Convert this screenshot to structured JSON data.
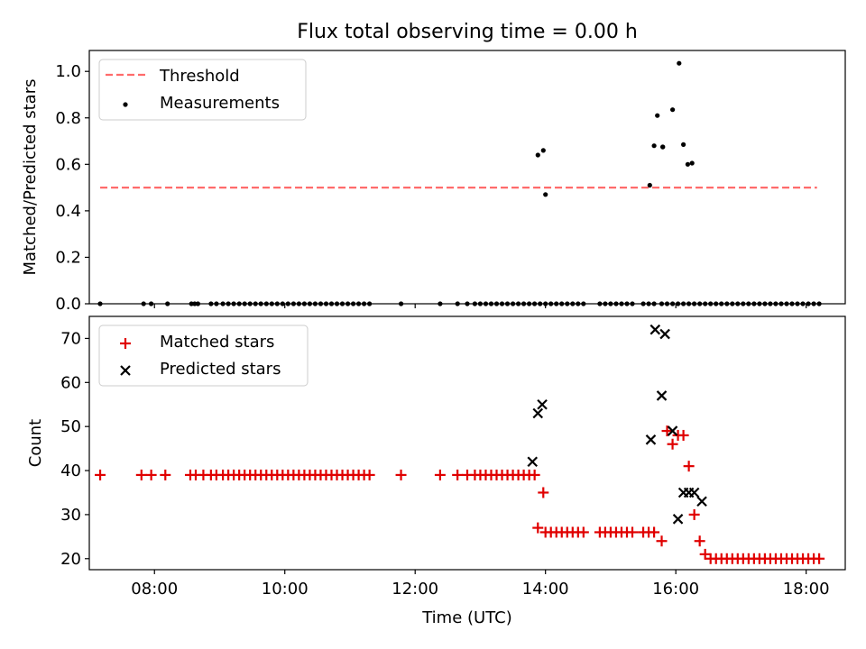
{
  "title": "Flux total observing time = 0.00 h",
  "colors": {
    "threshold": "#ff6b6b",
    "matched": "#e00000",
    "predicted": "#000000",
    "measurement": "#000000"
  },
  "chart_data": [
    {
      "type": "scatter",
      "ylabel": "Matched/Predicted stars",
      "xlabel": "",
      "xlim": [
        "07:00",
        "18:36"
      ],
      "ylim": [
        0,
        1.09
      ],
      "yticks": [
        "0.0",
        "0.2",
        "0.4",
        "0.6",
        "0.8",
        "1.0"
      ],
      "legend_position": "top-left",
      "threshold": {
        "name": "Threshold",
        "value": 0.5,
        "x_range": [
          "07:10",
          "18:10"
        ]
      },
      "series": [
        {
          "name": "Measurements",
          "x": [
            "07:10",
            "07:50",
            "07:57",
            "08:12",
            "08:34",
            "08:37",
            "08:40",
            "08:52",
            "08:57",
            "09:03",
            "09:08",
            "09:13",
            "09:18",
            "09:23",
            "09:28",
            "09:33",
            "09:38",
            "09:43",
            "09:48",
            "09:53",
            "09:58",
            "10:03",
            "10:08",
            "10:13",
            "10:18",
            "10:23",
            "10:28",
            "10:33",
            "10:38",
            "10:43",
            "10:48",
            "10:53",
            "10:58",
            "11:03",
            "11:08",
            "11:13",
            "11:18",
            "11:47",
            "12:23",
            "12:39",
            "12:48",
            "12:55",
            "13:00",
            "13:05",
            "13:10",
            "13:15",
            "13:20",
            "13:25",
            "13:30",
            "13:35",
            "13:40",
            "13:45",
            "13:50",
            "13:55",
            "14:00",
            "14:05",
            "14:10",
            "14:15",
            "14:20",
            "14:25",
            "14:30",
            "14:35",
            "14:50",
            "14:55",
            "15:00",
            "15:05",
            "15:10",
            "15:15",
            "15:20",
            "15:30",
            "15:35",
            "15:40",
            "15:47",
            "15:52",
            "15:57",
            "16:02",
            "16:07",
            "16:12",
            "16:17",
            "16:22",
            "16:27",
            "16:32",
            "16:37",
            "16:42",
            "16:47",
            "16:52",
            "16:57",
            "17:02",
            "17:07",
            "17:12",
            "17:17",
            "17:22",
            "17:27",
            "17:32",
            "17:37",
            "17:42",
            "17:47",
            "17:52",
            "17:57",
            "18:02",
            "18:07",
            "18:12",
            "13:53",
            "13:58",
            "14:00",
            "15:36",
            "15:40",
            "15:43",
            "15:48",
            "15:48",
            "15:57",
            "16:03",
            "16:07",
            "16:11",
            "16:15"
          ],
          "y": [
            0,
            0,
            0,
            0,
            0,
            0,
            0,
            0,
            0,
            0,
            0,
            0,
            0,
            0,
            0,
            0,
            0,
            0,
            0,
            0,
            0,
            0,
            0,
            0,
            0,
            0,
            0,
            0,
            0,
            0,
            0,
            0,
            0,
            0,
            0,
            0,
            0,
            0,
            0,
            0,
            0,
            0,
            0,
            0,
            0,
            0,
            0,
            0,
            0,
            0,
            0,
            0,
            0,
            0,
            0,
            0,
            0,
            0,
            0,
            0,
            0,
            0,
            0,
            0,
            0,
            0,
            0,
            0,
            0,
            0,
            0,
            0,
            0,
            0,
            0,
            0,
            0,
            0,
            0,
            0,
            0,
            0,
            0,
            0,
            0,
            0,
            0,
            0,
            0,
            0,
            0,
            0,
            0,
            0,
            0,
            0,
            0,
            0,
            0,
            0,
            0,
            0,
            0.64,
            0.66,
            0.47,
            0.51,
            0.68,
            0.81,
            0.675,
            0.675,
            0.835,
            1.035,
            0.685,
            0.6,
            0.605
          ]
        }
      ]
    },
    {
      "type": "scatter",
      "ylabel": "Count",
      "xlabel": "Time (UTC)",
      "xlim": [
        "07:00",
        "18:36"
      ],
      "ylim": [
        17.5,
        75
      ],
      "xticks": [
        "08:00",
        "10:00",
        "12:00",
        "14:00",
        "16:00",
        "18:00"
      ],
      "yticks": [
        "20",
        "30",
        "40",
        "50",
        "60",
        "70"
      ],
      "legend_position": "top-left",
      "series": [
        {
          "name": "Matched stars",
          "x": [
            "07:10",
            "07:48",
            "07:57",
            "08:10",
            "08:33",
            "08:38",
            "08:45",
            "08:52",
            "08:57",
            "09:03",
            "09:08",
            "09:13",
            "09:18",
            "09:23",
            "09:28",
            "09:33",
            "09:38",
            "09:43",
            "09:48",
            "09:53",
            "09:58",
            "10:03",
            "10:08",
            "10:13",
            "10:18",
            "10:23",
            "10:28",
            "10:33",
            "10:38",
            "10:43",
            "10:48",
            "10:53",
            "10:58",
            "11:03",
            "11:08",
            "11:13",
            "11:18",
            "11:47",
            "12:23",
            "12:39",
            "12:48",
            "12:55",
            "13:00",
            "13:05",
            "13:10",
            "13:15",
            "13:20",
            "13:25",
            "13:30",
            "13:35",
            "13:40",
            "13:45",
            "13:50",
            "13:53",
            "13:58",
            "14:00",
            "14:05",
            "14:10",
            "14:15",
            "14:20",
            "14:25",
            "14:30",
            "14:35",
            "14:50",
            "14:55",
            "15:00",
            "15:05",
            "15:10",
            "15:15",
            "15:20",
            "15:30",
            "15:35",
            "15:40",
            "15:47",
            "15:52",
            "15:57",
            "16:02",
            "16:07",
            "16:12",
            "16:17",
            "16:22",
            "16:27",
            "16:32",
            "16:37",
            "16:42",
            "16:47",
            "16:52",
            "16:57",
            "17:02",
            "17:07",
            "17:12",
            "17:17",
            "17:22",
            "17:27",
            "17:32",
            "17:37",
            "17:42",
            "17:47",
            "17:52",
            "17:57",
            "18:02",
            "18:07",
            "18:12"
          ],
          "y": [
            39,
            39,
            39,
            39,
            39,
            39,
            39,
            39,
            39,
            39,
            39,
            39,
            39,
            39,
            39,
            39,
            39,
            39,
            39,
            39,
            39,
            39,
            39,
            39,
            39,
            39,
            39,
            39,
            39,
            39,
            39,
            39,
            39,
            39,
            39,
            39,
            39,
            39,
            39,
            39,
            39,
            39,
            39,
            39,
            39,
            39,
            39,
            39,
            39,
            39,
            39,
            39,
            39,
            27,
            35,
            26,
            26,
            26,
            26,
            26,
            26,
            26,
            26,
            26,
            26,
            26,
            26,
            26,
            26,
            26,
            26,
            26,
            26,
            24,
            49,
            46,
            48,
            48,
            41,
            30,
            24,
            21,
            20,
            20,
            20,
            20,
            20,
            20,
            20,
            20,
            20,
            20,
            20,
            20,
            20,
            20,
            20,
            20,
            20,
            20,
            20,
            20,
            20
          ]
        },
        {
          "name": "Predicted stars",
          "x": [
            "13:48",
            "13:53",
            "13:57",
            "15:37",
            "15:41",
            "15:47",
            "15:50",
            "15:57",
            "16:02",
            "16:07",
            "16:12",
            "16:17",
            "16:24"
          ],
          "y": [
            42,
            53,
            55,
            47,
            72,
            57,
            71,
            49,
            29,
            35,
            35,
            35,
            33
          ]
        }
      ]
    }
  ]
}
